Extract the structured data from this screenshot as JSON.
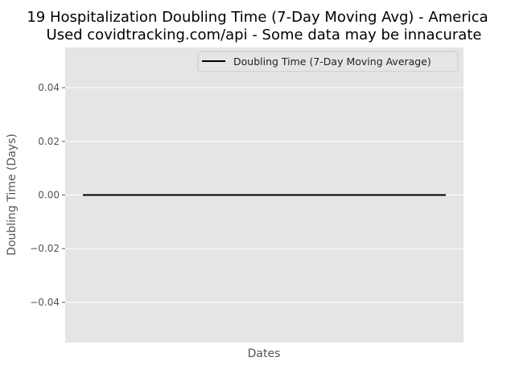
{
  "chart_data": {
    "type": "line",
    "title_line1": "19 Hospitalization Doubling Time (7-Day Moving Avg) - America",
    "title_line2": "Used covidtracking.com/api - Some data may be innacurate",
    "xlabel": "Dates",
    "ylabel": "Doubling Time (Days)",
    "ylim": [
      -0.055,
      0.055
    ],
    "yticks": [
      -0.04,
      -0.02,
      0.0,
      0.02,
      0.04
    ],
    "ytick_labels": [
      "−0.04",
      "−0.02",
      "0.00",
      "0.02",
      "0.04"
    ],
    "grid": true,
    "legend_position": "top-right",
    "background_color": "#e5e5e5",
    "grid_color": "#ffffff",
    "series": [
      {
        "name": "Doubling Time (7-Day Moving Average)",
        "color": "#000000",
        "y": [
          0.0,
          0.0
        ]
      }
    ]
  }
}
